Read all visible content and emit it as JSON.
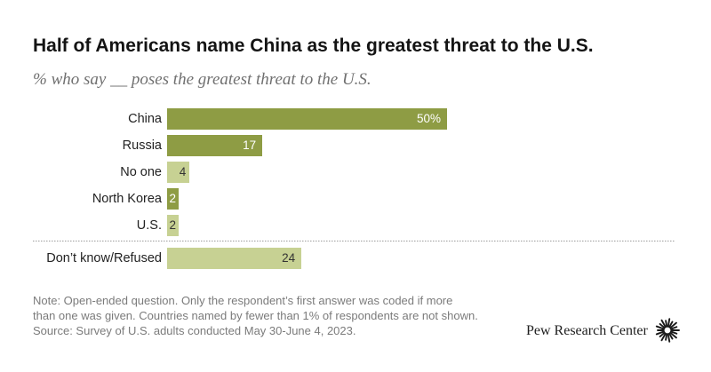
{
  "chart_data": {
    "type": "bar",
    "title": "Half of Americans name China as the greatest threat to the U.S.",
    "subtitle": "% who say __ poses the greatest threat to the U.S.",
    "xlabel": "",
    "ylabel": "",
    "categories": [
      "China",
      "Russia",
      "No one",
      "North Korea",
      "U.S.",
      "Don’t know/Refused"
    ],
    "values": [
      50,
      17,
      4,
      2,
      2,
      24
    ],
    "value_labels": [
      "50%",
      "17",
      "4",
      "2",
      "2",
      "24"
    ],
    "bar_colors": [
      "#8e9c44",
      "#8e9c44",
      "#c7d193",
      "#8e9c44",
      "#c7d193",
      "#c7d193"
    ],
    "label_colors": [
      "#ffffff",
      "#ffffff",
      "#333333",
      "#ffffff",
      "#333333",
      "#333333"
    ],
    "xlim": [
      0,
      50
    ],
    "grid": false
  },
  "footer": {
    "note_lines": [
      "Note: Open-ended question. Only the respondent’s first answer was coded if more",
      "than one was given. Countries named by fewer than 1% of respondents are not shown."
    ],
    "source": "Source: Survey of U.S. adults conducted May 30-June 4, 2023.",
    "logo_text": "Pew Research Center"
  }
}
